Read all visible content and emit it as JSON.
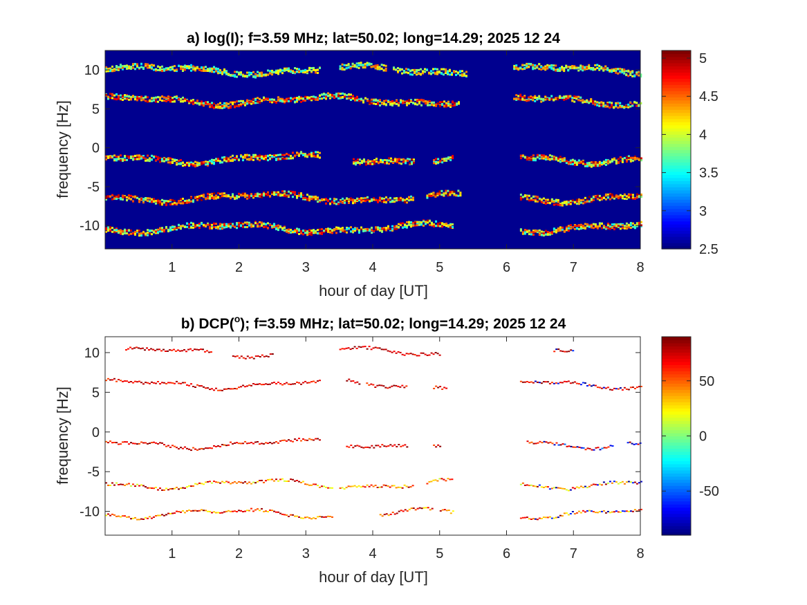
{
  "chart_data": [
    {
      "type": "heatmap",
      "title_prefix": "a) log(I); f=3.59 MHz;  lat=50.02; long=14.29; 2025 12 24",
      "xlabel": "hour of day [UT]",
      "ylabel": "frequency [Hz]",
      "xlim": [
        0,
        8
      ],
      "ylim": [
        -13,
        12.5
      ],
      "xticks": [
        1,
        2,
        3,
        4,
        5,
        6,
        7,
        8
      ],
      "yticks": [
        10,
        5,
        0,
        -5,
        -10
      ],
      "background": "#00008f",
      "colorbar": {
        "colormap": "jet",
        "range": [
          2.5,
          5.1
        ],
        "ticks": [
          5,
          4.5,
          4,
          3.5,
          3,
          2.5
        ],
        "tick_labels": [
          "5",
          "4.5",
          "4",
          "3.5",
          "3",
          "2.5"
        ]
      },
      "bands": [
        {
          "center_hz": 10.1,
          "segments": [
            [
              0,
              3.2
            ],
            [
              3.5,
              4.2
            ],
            [
              4.3,
              5.4
            ],
            [
              6.1,
              8
            ]
          ],
          "intensity": [
            3.4,
            4.6
          ]
        },
        {
          "center_hz": 6.2,
          "segments": [
            [
              0,
              5.3
            ],
            [
              6.1,
              8
            ]
          ],
          "intensity": [
            3.5,
            5.0
          ]
        },
        {
          "center_hz": -1.3,
          "segments": [
            [
              0,
              3.2
            ],
            [
              3.7,
              4.6
            ],
            [
              4.9,
              5.2
            ],
            [
              6.2,
              8
            ]
          ],
          "intensity": [
            3.5,
            5.0
          ]
        },
        {
          "center_hz": -6.3,
          "segments": [
            [
              0,
              4.6
            ],
            [
              4.8,
              5.3
            ],
            [
              6.2,
              8
            ]
          ],
          "intensity": [
            3.6,
            5.1
          ]
        },
        {
          "center_hz": -10.2,
          "segments": [
            [
              0,
              5.2
            ],
            [
              6.2,
              8
            ]
          ],
          "intensity": [
            3.4,
            5.0
          ]
        }
      ]
    },
    {
      "type": "heatmap",
      "title_prefix": "b) DCP(",
      "title_sup": "o",
      "title_suffix": "); f=3.59 MHz;  lat=50.02; long=14.29; 2025 12 24",
      "xlabel": "hour of day [UT]",
      "ylabel": "frequency [Hz]",
      "xlim": [
        0,
        8
      ],
      "ylim": [
        -13,
        12
      ],
      "xticks": [
        1,
        2,
        3,
        4,
        5,
        6,
        7,
        8
      ],
      "yticks": [
        10,
        5,
        0,
        -5,
        -10
      ],
      "background": "#ffffff",
      "colorbar": {
        "colormap": "jet",
        "range": [
          -90,
          90
        ],
        "ticks": [
          50,
          0,
          -50
        ],
        "tick_labels": [
          "50",
          "0",
          "-50"
        ]
      },
      "bands": [
        {
          "center_hz": 10.1,
          "segments": [
            [
              0.3,
              1.6
            ],
            [
              1.9,
              2.5
            ],
            [
              3.5,
              5.0
            ],
            [
              6.7,
              7.0
            ]
          ],
          "dcp": [
            60,
            90
          ],
          "dcp_late": [
            -90,
            -40
          ]
        },
        {
          "center_hz": 6.1,
          "segments": [
            [
              0.0,
              3.2
            ],
            [
              3.6,
              3.8
            ],
            [
              3.9,
              4.5
            ],
            [
              4.9,
              5.1
            ],
            [
              6.2,
              8
            ]
          ],
          "dcp": [
            55,
            90
          ],
          "dcp_late": [
            -90,
            -60
          ]
        },
        {
          "center_hz": -1.4,
          "segments": [
            [
              0.0,
              3.2
            ],
            [
              3.6,
              4.5
            ],
            [
              4.9,
              5.0
            ],
            [
              6.3,
              7.6
            ],
            [
              7.8,
              8
            ]
          ],
          "dcp": [
            50,
            90
          ],
          "dcp_late": [
            -90,
            -40
          ]
        },
        {
          "center_hz": -6.5,
          "segments": [
            [
              0.0,
              3.4
            ],
            [
              3.5,
              4.6
            ],
            [
              4.8,
              5.2
            ],
            [
              6.2,
              8
            ]
          ],
          "dcp": [
            10,
            90
          ],
          "dcp_late": [
            -90,
            -60
          ]
        },
        {
          "center_hz": -10.2,
          "segments": [
            [
              0.0,
              3.4
            ],
            [
              4.1,
              4.9
            ],
            [
              5.0,
              5.2
            ],
            [
              6.2,
              8
            ]
          ],
          "dcp": [
            20,
            90
          ],
          "dcp_late": [
            -90,
            -60
          ]
        }
      ]
    }
  ]
}
